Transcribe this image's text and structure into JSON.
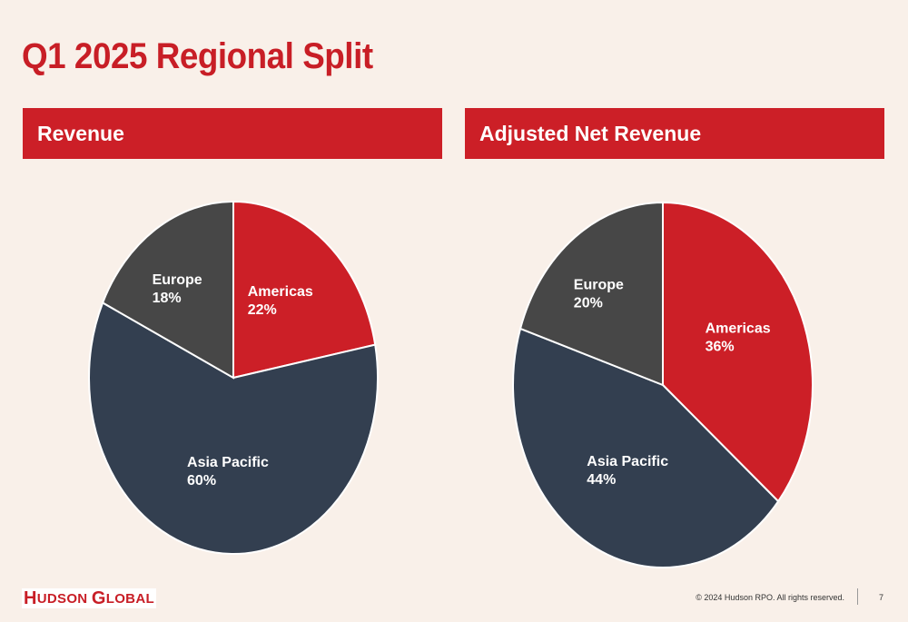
{
  "slide": {
    "title": "Q1 2025 Regional Split",
    "copyright": "© 2024 Hudson RPO. All rights reserved.",
    "page_number": "7"
  },
  "logo": {
    "text_h": "H",
    "text_udson": "UDSON",
    "text_g": "G",
    "text_lobal": "LOBAL"
  },
  "colors": {
    "red": "#cc1f27",
    "navy": "#333f50",
    "gray": "#474747",
    "background": "#f9f0e9"
  },
  "chart_data": [
    {
      "type": "pie",
      "title": "Revenue",
      "categories": [
        "Americas",
        "Asia Pacific",
        "Europe"
      ],
      "values": [
        22,
        60,
        18
      ],
      "labels": [
        "22%",
        "60%",
        "18%"
      ],
      "colors": [
        "#cc1f27",
        "#333f50",
        "#474747"
      ]
    },
    {
      "type": "pie",
      "title": "Adjusted Net Revenue",
      "categories": [
        "Americas",
        "Asia Pacific",
        "Europe"
      ],
      "values": [
        36,
        44,
        20
      ],
      "labels": [
        "36%",
        "44%",
        "20%"
      ],
      "colors": [
        "#cc1f27",
        "#333f50",
        "#474747"
      ]
    }
  ]
}
